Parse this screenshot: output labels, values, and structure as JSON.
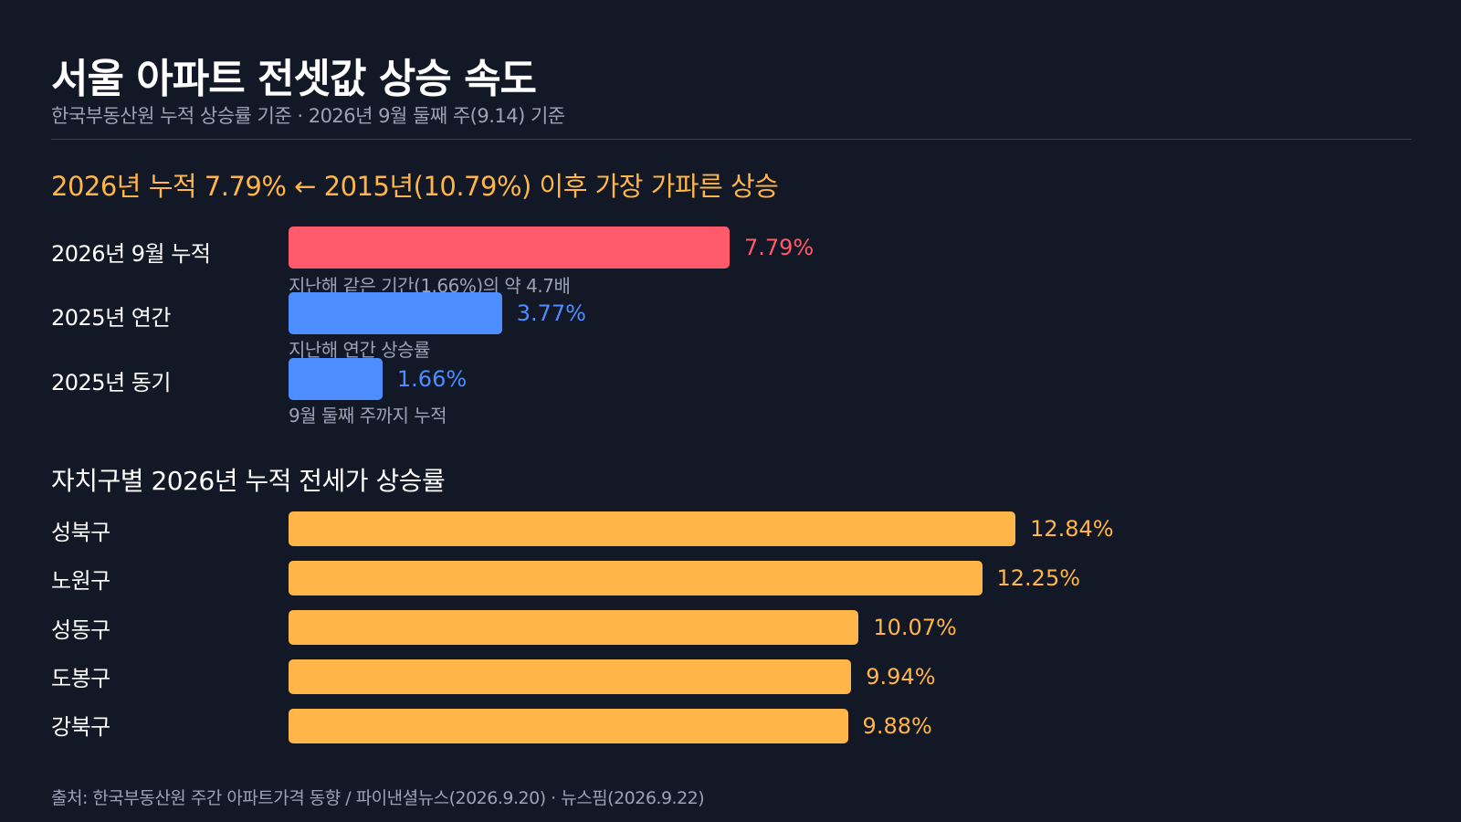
{
  "header": {
    "title": "서울 아파트 전셋값 상승 속도",
    "subtitle": "한국부동산원 누적 상승률 기준 · 2026년 9월 둘째 주(9.14) 기준",
    "headline": "2026년 누적 7.79% ← 2015년(10.79%) 이후 가장 가파른 상승"
  },
  "section2": {
    "title": "자치구별 2026년 누적 전세가 상승률"
  },
  "footer": {
    "source": "출처: 한국부동산원 주간 아파트가격 동향 / 파이낸셜뉴스(2026.9.20) · 뉴스핌(2026.9.22)"
  },
  "colors": {
    "background": "#131826",
    "highlight_bar": "#ff5a6b",
    "comparison_bar": "#4d8dff",
    "district_bar": "#ffb547",
    "muted_text": "#9aa3b5"
  },
  "chart_data": [
    {
      "type": "bar",
      "orientation": "horizontal",
      "categories": [
        "2026년 9월 누적",
        "2025년 연간",
        "2025년 동기"
      ],
      "values": [
        7.79,
        3.77,
        1.66
      ],
      "value_labels": [
        "7.79%",
        "3.77%",
        "1.66%"
      ],
      "notes": [
        "지난해 같은 기간(1.66%)의 약 4.7배",
        "지난해 연간 상승률",
        "9월 둘째 주까지 누적"
      ],
      "bar_colors": [
        "#ff5a6b",
        "#4d8dff",
        "#4d8dff"
      ],
      "xlim": [
        0,
        15
      ],
      "grid": false
    },
    {
      "type": "bar",
      "orientation": "horizontal",
      "categories": [
        "성북구",
        "노원구",
        "성동구",
        "도봉구",
        "강북구"
      ],
      "values": [
        12.84,
        12.25,
        10.07,
        9.94,
        9.88
      ],
      "value_labels": [
        "12.84%",
        "12.25%",
        "10.07%",
        "9.94%",
        "9.88%"
      ],
      "bar_color": "#ffb547",
      "xlim": [
        0,
        15
      ],
      "grid": false
    }
  ]
}
